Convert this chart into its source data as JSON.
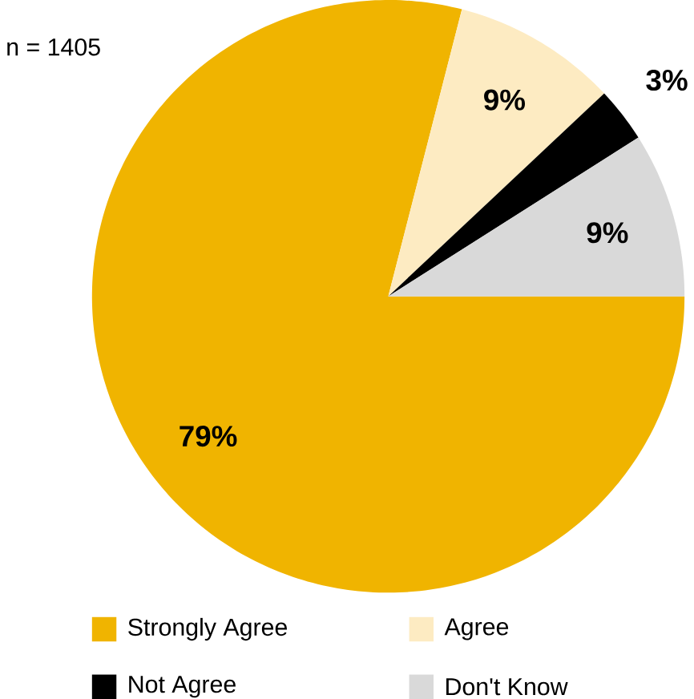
{
  "chart_data": {
    "type": "pie",
    "categories": [
      "Strongly Agree",
      "Agree",
      "Not Agree",
      "Don't Know"
    ],
    "values": [
      79,
      9,
      3,
      9
    ],
    "colors": [
      "#f0b400",
      "#fdebc2",
      "#000000",
      "#d9d9d9"
    ],
    "value_labels": [
      "79%",
      "9%",
      "3%",
      "9%"
    ],
    "annotations": [
      "n = 1405"
    ],
    "legend": "bottom"
  }
}
